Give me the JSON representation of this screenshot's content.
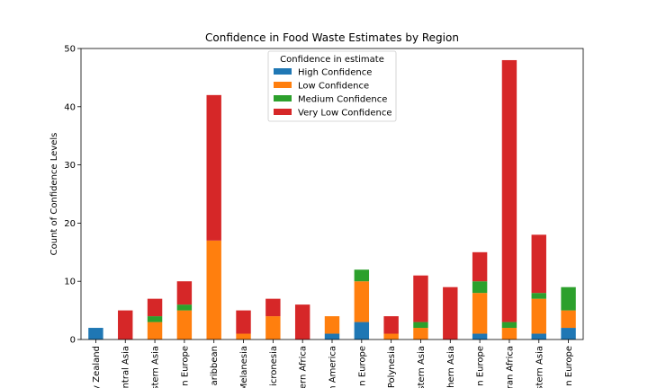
{
  "chart_data": {
    "type": "bar",
    "stacked": true,
    "title": "Confidence in Food Waste Estimates by Region",
    "xlabel": "",
    "ylabel": "Count of Confidence Levels",
    "ylim": [
      0,
      50
    ],
    "yticks": [
      0,
      10,
      20,
      30,
      40,
      50
    ],
    "grid": false,
    "legend_position": "top-center",
    "legend_title": "Confidence in estimate",
    "categories": [
      "Australia and New Zealand",
      "Central Asia",
      "Eastern Asia",
      "Eastern Europe",
      "Caribbean",
      "Melanesia",
      "Micronesia",
      "Northern Africa",
      "Northern America",
      "Northern Europe",
      "Polynesia",
      "South-eastern Asia",
      "Southern Asia",
      "Southern Europe",
      "Sub-Saharan Africa",
      "Western Asia",
      "Western Europe"
    ],
    "visible_tick_labels": [
      "y Zealand",
      "ntral Asia",
      "stern Asia",
      "n Europe",
      "aribbean",
      "Melanesia",
      "icronesia",
      "ern Africa",
      "n America",
      "n Europe",
      "Polynesia",
      "stern Asia",
      "hern Asia",
      "n Europe",
      "ran Africa",
      "stern Asia",
      "n Europe"
    ],
    "series": [
      {
        "name": "High Confidence",
        "color": "#1f77b4",
        "values": [
          2,
          0,
          0,
          0,
          0,
          0,
          0,
          0,
          1,
          3,
          0,
          0,
          0,
          1,
          0,
          1,
          2
        ]
      },
      {
        "name": "Low Confidence",
        "color": "#ff7f0e",
        "values": [
          0,
          0,
          3,
          5,
          17,
          1,
          4,
          0,
          3,
          7,
          1,
          2,
          0,
          7,
          2,
          6,
          3
        ]
      },
      {
        "name": "Medium Confidence",
        "color": "#2ca02c",
        "values": [
          0,
          0,
          1,
          1,
          0,
          0,
          0,
          0,
          0,
          2,
          0,
          1,
          0,
          2,
          1,
          1,
          4
        ]
      },
      {
        "name": "Very Low Confidence",
        "color": "#d62728",
        "values": [
          0,
          5,
          3,
          4,
          25,
          4,
          3,
          6,
          0,
          0,
          3,
          8,
          9,
          5,
          45,
          10,
          0
        ]
      }
    ]
  }
}
